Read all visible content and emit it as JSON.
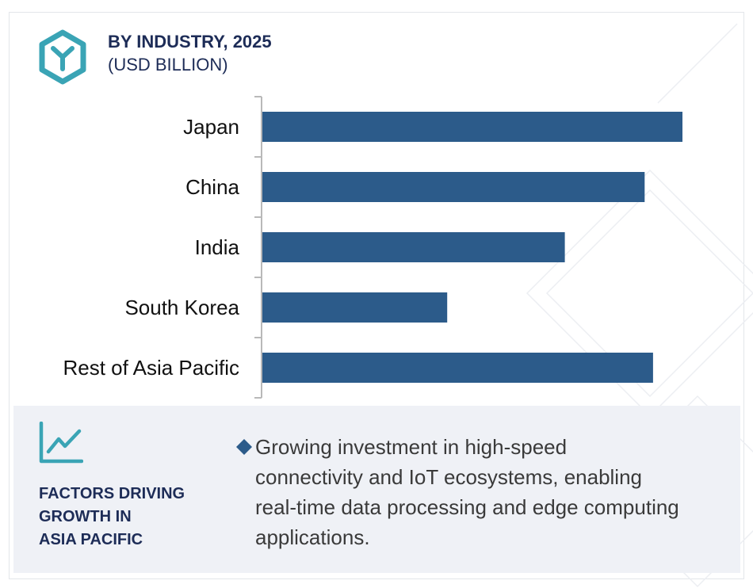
{
  "header": {
    "title": "BY INDUSTRY, 2025",
    "subtitle": "(USD BILLION)",
    "icon": "hexagon-y-logo-icon"
  },
  "colors": {
    "bar": "#2c5b8a",
    "accent_teal": "#3aa4b5",
    "title": "#1d2c57",
    "panel_bg": "#eff1f6",
    "axis": "#b9b9b9",
    "text": "#3a3a3a"
  },
  "chart_data": {
    "type": "bar",
    "orientation": "horizontal",
    "title": "BY INDUSTRY, 2025",
    "subtitle": "(USD BILLION)",
    "categories": [
      "Japan",
      "China",
      "India",
      "South Korea",
      "Rest of Asia Pacific"
    ],
    "values": [
      10.0,
      9.1,
      7.2,
      4.4,
      9.3
    ],
    "xlim": [
      0,
      10.5
    ],
    "value_axis_labels": false,
    "grid": false,
    "legend": "none"
  },
  "factors": {
    "icon": "line-chart-growth-icon",
    "heading_lines": [
      "FACTORS DRIVING",
      "GROWTH IN",
      "ASIA PACIFIC"
    ],
    "bullet_icon": "diamond-bullet-icon",
    "text_lines": [
      "Growing investment in high-speed",
      "connectivity and IoT ecosystems, enabling",
      "real-time data processing and edge computing",
      "applications."
    ]
  }
}
